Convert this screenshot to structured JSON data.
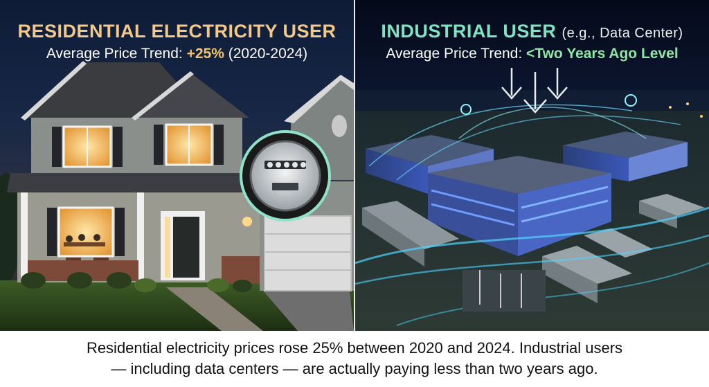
{
  "left_panel": {
    "heading": "RESIDENTIAL ELECTRICITY USER",
    "trend_label": "Average Price Trend:",
    "trend_value": "+25%",
    "trend_period": "(2020-2024)"
  },
  "right_panel": {
    "heading": "INDUSTRIAL USER",
    "heading_note": "(e.g., Data Center)",
    "trend_label": "Average Price Trend:",
    "trend_value": "<Two Years Ago Level"
  },
  "caption": {
    "line1": "Residential electricity prices rose 25% between 2020 and 2024. Industrial users",
    "line2": "— including data centers — are actually paying less than two years ago."
  },
  "icons": [
    "electric-meter-icon",
    "down-arrow-icon"
  ],
  "colors": {
    "residential_accent": "#f2c98a",
    "industrial_accent": "#7fe3c4",
    "trend_up": "#f2c36d",
    "trend_down": "#8de6a4"
  }
}
